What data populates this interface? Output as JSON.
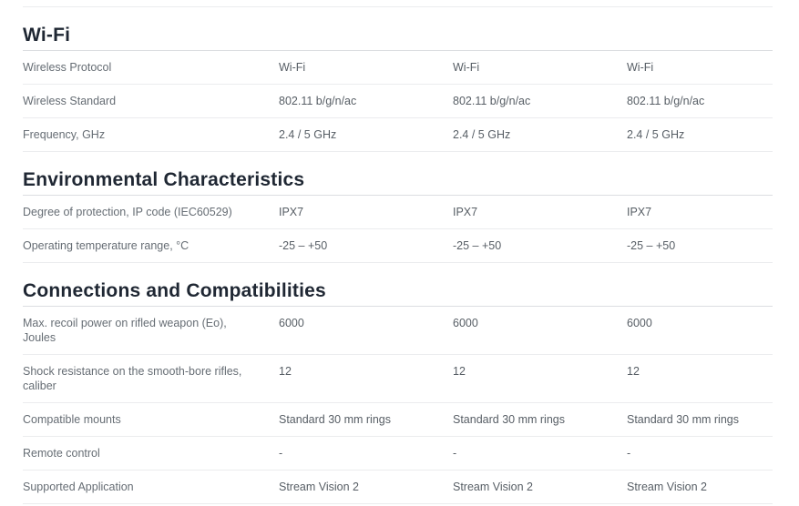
{
  "colors": {
    "background": "#ffffff",
    "heading_text": "#1f2733",
    "label_text": "#666d74",
    "value_text": "#575e65",
    "row_divider": "#ebecee",
    "heading_underline": "#dcdee1"
  },
  "sections": [
    {
      "title": "Wi-Fi",
      "rows": [
        {
          "label": "Wireless Protocol",
          "values": [
            "Wi-Fi",
            "Wi-Fi",
            "Wi-Fi"
          ]
        },
        {
          "label": "Wireless Standard",
          "values": [
            "802.11 b/g/n/ac",
            "802.11 b/g/n/ac",
            "802.11 b/g/n/ac"
          ]
        },
        {
          "label": "Frequency, GHz",
          "values": [
            "2.4 / 5 GHz",
            "2.4 / 5 GHz",
            "2.4 / 5 GHz"
          ]
        }
      ]
    },
    {
      "title": "Environmental Characteristics",
      "rows": [
        {
          "label": "Degree of protection, IP code (IEC60529)",
          "values": [
            "IPX7",
            "IPX7",
            "IPX7"
          ]
        },
        {
          "label": "Operating temperature range, °C",
          "values": [
            "-25 – +50",
            "-25 – +50",
            "-25 – +50"
          ]
        }
      ]
    },
    {
      "title": "Connections and Compatibilities",
      "rows": [
        {
          "label": "Max. recoil power on rifled weapon (Eo), Joules",
          "values": [
            "6000",
            "6000",
            "6000"
          ]
        },
        {
          "label": "Shock resistance on the smooth-bore rifles, caliber",
          "values": [
            "12",
            "12",
            "12"
          ]
        },
        {
          "label": "Compatible mounts",
          "values": [
            "Standard 30 mm rings",
            "Standard 30 mm rings",
            "Standard 30 mm rings"
          ]
        },
        {
          "label": "Remote control",
          "values": [
            "-",
            "-",
            "-"
          ]
        },
        {
          "label": "Supported Application",
          "values": [
            "Stream Vision 2",
            "Stream Vision 2",
            "Stream Vision 2"
          ]
        }
      ]
    }
  ]
}
